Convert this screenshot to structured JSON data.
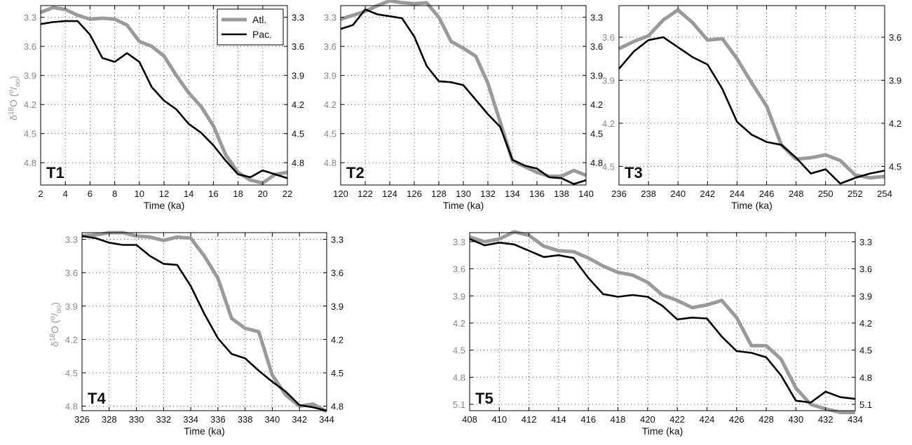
{
  "chart_data": [
    {
      "type": "line",
      "panel_label": "T1",
      "xlabel": "Time (ka)",
      "ylabel": "δ18O (‰)",
      "ylabel_main": "δ",
      "ylabel_sup": "18",
      "ylabel_o": "O (",
      "ylabel_permil_num": "o",
      "ylabel_permil_slash": "/",
      "ylabel_permil_den": "oo",
      "ylabel_close": ")",
      "xlim": [
        2,
        22
      ],
      "ylim_left": [
        5.03,
        3.18
      ],
      "ylim_right": [
        5.03,
        3.18
      ],
      "y_reversed": true,
      "xticks": [
        2,
        4,
        6,
        8,
        10,
        12,
        14,
        16,
        18,
        20,
        22
      ],
      "xtick_labels": [
        "2",
        "4",
        "6",
        "8",
        "10",
        "12",
        "14",
        "16",
        "18",
        "20",
        "22"
      ],
      "yticks_left": [
        3.3,
        3.6,
        3.9,
        4.2,
        4.5,
        4.8
      ],
      "ytick_labels_left": [
        "3.3",
        "3.6",
        "3.9",
        "4.2",
        "4.5",
        "4.8"
      ],
      "yticks_right": [
        3.3,
        3.6,
        3.9,
        4.2,
        4.5,
        4.8
      ],
      "ytick_labels_right": [
        "3.3",
        "3.6",
        "3.9",
        "4.2",
        "4.5",
        "4.8"
      ],
      "grid": true,
      "legend": {
        "placement": "top-right",
        "entries": [
          "Atl.",
          "Pac."
        ]
      },
      "series": [
        {
          "name": "Atl.",
          "color": "#9a9a9a",
          "axis": "left",
          "x": [
            2,
            3,
            4,
            5,
            6,
            7,
            8,
            9,
            10,
            11,
            12,
            13,
            14,
            15,
            16,
            17,
            18,
            19,
            20,
            21,
            22
          ],
          "y": [
            3.25,
            3.2,
            3.22,
            3.28,
            3.32,
            3.31,
            3.32,
            3.38,
            3.55,
            3.6,
            3.7,
            3.9,
            4.08,
            4.22,
            4.42,
            4.72,
            4.9,
            4.98,
            5.01,
            4.92,
            4.9
          ]
        },
        {
          "name": "Pac.",
          "color": "#000000",
          "axis": "right",
          "x": [
            2,
            3,
            4,
            5,
            6,
            7,
            8,
            9,
            10,
            11,
            12,
            13,
            14,
            15,
            16,
            17,
            18,
            19,
            20,
            21,
            22
          ],
          "y": [
            3.37,
            3.35,
            3.34,
            3.34,
            3.48,
            3.72,
            3.76,
            3.67,
            3.76,
            4.02,
            4.16,
            4.25,
            4.4,
            4.49,
            4.62,
            4.78,
            4.92,
            4.95,
            4.88,
            4.92,
            4.96
          ]
        }
      ]
    },
    {
      "type": "line",
      "panel_label": "T2",
      "xlabel": "Time (ka)",
      "ylabel": "",
      "xlim": [
        120,
        140
      ],
      "ylim_left": [
        5.03,
        3.18
      ],
      "ylim_right": [
        5.03,
        3.18
      ],
      "y_reversed": true,
      "xticks": [
        120,
        122,
        124,
        126,
        128,
        130,
        132,
        134,
        136,
        138,
        140
      ],
      "xtick_labels": [
        "120",
        "122",
        "124",
        "126",
        "128",
        "130",
        "132",
        "134",
        "136",
        "138",
        "140"
      ],
      "yticks_left": [
        3.3,
        3.6,
        3.9,
        4.2,
        4.5,
        4.8
      ],
      "ytick_labels_left": [
        "3.3",
        "3.6",
        "3.9",
        "4.2",
        "4.5",
        "4.8"
      ],
      "yticks_right": [
        3.3,
        3.6,
        3.9,
        4.2,
        4.5,
        4.8
      ],
      "ytick_labels_right": [
        "3.3",
        "3.6",
        "3.9",
        "4.2",
        "4.5",
        "4.8"
      ],
      "grid": true,
      "series": [
        {
          "name": "Atl.",
          "color": "#9a9a9a",
          "axis": "left",
          "x": [
            120,
            121,
            122,
            123,
            124,
            125,
            126,
            127,
            128,
            129,
            130,
            131,
            132,
            133,
            134,
            135,
            136,
            137,
            138,
            139,
            140
          ],
          "y": [
            3.32,
            3.28,
            3.24,
            3.18,
            3.13,
            3.15,
            3.16,
            3.15,
            3.3,
            3.55,
            3.62,
            3.7,
            3.98,
            4.38,
            4.78,
            4.84,
            4.9,
            4.94,
            4.94,
            4.88,
            4.93
          ]
        },
        {
          "name": "Pac.",
          "color": "#000000",
          "axis": "right",
          "x": [
            120,
            121,
            122,
            123,
            124,
            125,
            126,
            127,
            128,
            129,
            130,
            131,
            132,
            133,
            134,
            135,
            136,
            137,
            138,
            139,
            140
          ],
          "y": [
            3.42,
            3.38,
            3.22,
            3.27,
            3.29,
            3.31,
            3.5,
            3.8,
            3.96,
            3.97,
            4.0,
            4.15,
            4.3,
            4.43,
            4.77,
            4.83,
            4.86,
            4.95,
            4.96,
            5.02,
            4.98
          ]
        }
      ]
    },
    {
      "type": "line",
      "panel_label": "T3",
      "xlabel": "Time (ka)",
      "ylabel": "",
      "xlim": [
        236,
        254
      ],
      "ylim_left": [
        4.63,
        3.38
      ],
      "ylim_right": [
        4.63,
        3.38
      ],
      "y_reversed": true,
      "xticks": [
        236,
        238,
        240,
        242,
        244,
        246,
        248,
        250,
        252,
        254
      ],
      "xtick_labels": [
        "236",
        "238",
        "240",
        "242",
        "244",
        "246",
        "248",
        "250",
        "252",
        "254"
      ],
      "yticks_left": [
        3.6,
        3.9,
        4.2,
        4.5
      ],
      "ytick_labels_left": [
        "3.6",
        "3.9",
        "4.2",
        "4.5"
      ],
      "yticks_right": [
        3.6,
        3.9,
        4.2,
        4.5
      ],
      "ytick_labels_right": [
        "3.6",
        "3.9",
        "4.2",
        "4.5"
      ],
      "grid": true,
      "series": [
        {
          "name": "Atl.",
          "color": "#9a9a9a",
          "axis": "left",
          "x": [
            236,
            237,
            238,
            239,
            240,
            241,
            242,
            243,
            244,
            245,
            246,
            247,
            248,
            249,
            250,
            251,
            252,
            253,
            254
          ],
          "y": [
            3.68,
            3.63,
            3.59,
            3.48,
            3.41,
            3.5,
            3.62,
            3.61,
            3.75,
            3.92,
            4.08,
            4.35,
            4.45,
            4.44,
            4.42,
            4.46,
            4.56,
            4.58,
            4.57
          ]
        },
        {
          "name": "Pac.",
          "color": "#000000",
          "axis": "right",
          "x": [
            236,
            237,
            238,
            239,
            240,
            241,
            242,
            243,
            244,
            245,
            246,
            247,
            248,
            249,
            250,
            251,
            252,
            253,
            254
          ],
          "y": [
            3.82,
            3.7,
            3.62,
            3.6,
            3.67,
            3.74,
            3.79,
            3.96,
            4.19,
            4.28,
            4.33,
            4.35,
            4.44,
            4.55,
            4.52,
            4.62,
            4.58,
            4.55,
            4.53
          ]
        }
      ]
    },
    {
      "type": "line",
      "panel_label": "T4",
      "xlabel": "Time (ka)",
      "ylabel": "δ18O (‰)",
      "ylabel_main": "δ",
      "ylabel_sup": "18",
      "ylabel_o": "O (",
      "ylabel_permil_num": "o",
      "ylabel_permil_slash": "/",
      "ylabel_permil_den": "oo",
      "ylabel_close": ")",
      "xlim": [
        326,
        344
      ],
      "ylim_left": [
        4.84,
        3.24
      ],
      "ylim_right": [
        4.84,
        3.24
      ],
      "y_reversed": true,
      "xticks": [
        326,
        328,
        330,
        332,
        334,
        336,
        338,
        340,
        342,
        344
      ],
      "xtick_labels": [
        "326",
        "328",
        "330",
        "332",
        "334",
        "336",
        "338",
        "340",
        "342",
        "344"
      ],
      "yticks_left": [
        3.3,
        3.6,
        3.9,
        4.2,
        4.5,
        4.8
      ],
      "ytick_labels_left": [
        "3.3",
        "3.6",
        "3.9",
        "4.2",
        "4.5",
        "4.8"
      ],
      "yticks_right": [
        3.3,
        3.6,
        3.9,
        4.2,
        4.5,
        4.8
      ],
      "ytick_labels_right": [
        "3.3",
        "3.6",
        "3.9",
        "4.2",
        "4.5",
        "4.8"
      ],
      "grid": true,
      "series": [
        {
          "name": "Atl.",
          "color": "#9a9a9a",
          "axis": "left",
          "x": [
            326,
            327,
            328,
            329,
            330,
            331,
            332,
            333,
            334,
            335,
            336,
            337,
            338,
            339,
            340,
            341,
            342,
            343,
            344
          ],
          "y": [
            3.27,
            3.26,
            3.24,
            3.24,
            3.27,
            3.28,
            3.31,
            3.28,
            3.29,
            3.45,
            3.65,
            4.01,
            4.1,
            4.13,
            4.52,
            4.7,
            4.8,
            4.78,
            4.85
          ]
        },
        {
          "name": "Pac.",
          "color": "#000000",
          "axis": "right",
          "x": [
            326,
            327,
            328,
            329,
            330,
            331,
            332,
            333,
            334,
            335,
            336,
            337,
            338,
            339,
            340,
            341,
            342,
            343,
            344
          ],
          "y": [
            3.27,
            3.29,
            3.33,
            3.35,
            3.35,
            3.45,
            3.52,
            3.53,
            3.72,
            3.97,
            4.19,
            4.33,
            4.37,
            4.48,
            4.58,
            4.67,
            4.79,
            4.81,
            4.84
          ]
        }
      ]
    },
    {
      "type": "line",
      "panel_label": "T5",
      "xlabel": "Time (ka)",
      "ylabel": "",
      "xlim": [
        408,
        434
      ],
      "ylim_left": [
        5.17,
        3.2
      ],
      "ylim_right": [
        5.17,
        3.2
      ],
      "y_reversed": true,
      "xticks": [
        408,
        410,
        412,
        414,
        416,
        418,
        420,
        422,
        424,
        426,
        428,
        430,
        432,
        434
      ],
      "xtick_labels": [
        "408",
        "410",
        "412",
        "414",
        "416",
        "418",
        "420",
        "422",
        "424",
        "426",
        "428",
        "430",
        "432",
        "434"
      ],
      "yticks_left": [
        3.3,
        3.6,
        3.9,
        4.2,
        4.5,
        4.8,
        5.1
      ],
      "ytick_labels_left": [
        "3.3",
        "3.6",
        "3.9",
        "4.2",
        "4.5",
        "4.8",
        "5.1"
      ],
      "yticks_right": [
        3.3,
        3.6,
        3.9,
        4.2,
        4.5,
        4.8,
        5.1
      ],
      "ytick_labels_right": [
        "3.3",
        "3.6",
        "3.9",
        "4.2",
        "4.5",
        "4.8",
        "5.1"
      ],
      "grid": true,
      "series": [
        {
          "name": "Atl.",
          "color": "#9a9a9a",
          "axis": "left",
          "x": [
            408,
            409,
            410,
            411,
            412,
            413,
            414,
            415,
            416,
            417,
            418,
            419,
            420,
            421,
            422,
            423,
            424,
            425,
            426,
            427,
            428,
            429,
            430,
            431,
            432,
            433,
            434
          ],
          "y": [
            3.25,
            3.3,
            3.27,
            3.19,
            3.23,
            3.35,
            3.4,
            3.41,
            3.48,
            3.57,
            3.64,
            3.67,
            3.75,
            3.89,
            3.95,
            4.03,
            4.0,
            3.95,
            4.14,
            4.45,
            4.45,
            4.6,
            4.92,
            5.1,
            5.15,
            5.19,
            5.19
          ]
        },
        {
          "name": "Pac.",
          "color": "#000000",
          "axis": "right",
          "x": [
            408,
            409,
            410,
            411,
            412,
            413,
            414,
            415,
            416,
            417,
            418,
            419,
            420,
            421,
            422,
            423,
            424,
            425,
            426,
            427,
            428,
            429,
            430,
            431,
            432,
            433,
            434
          ],
          "y": [
            3.27,
            3.34,
            3.31,
            3.33,
            3.4,
            3.47,
            3.45,
            3.48,
            3.7,
            3.88,
            3.91,
            3.89,
            3.91,
            4.01,
            4.16,
            4.14,
            4.15,
            4.35,
            4.51,
            4.53,
            4.58,
            4.78,
            5.06,
            5.08,
            4.96,
            5.02,
            5.04
          ]
        }
      ]
    }
  ]
}
